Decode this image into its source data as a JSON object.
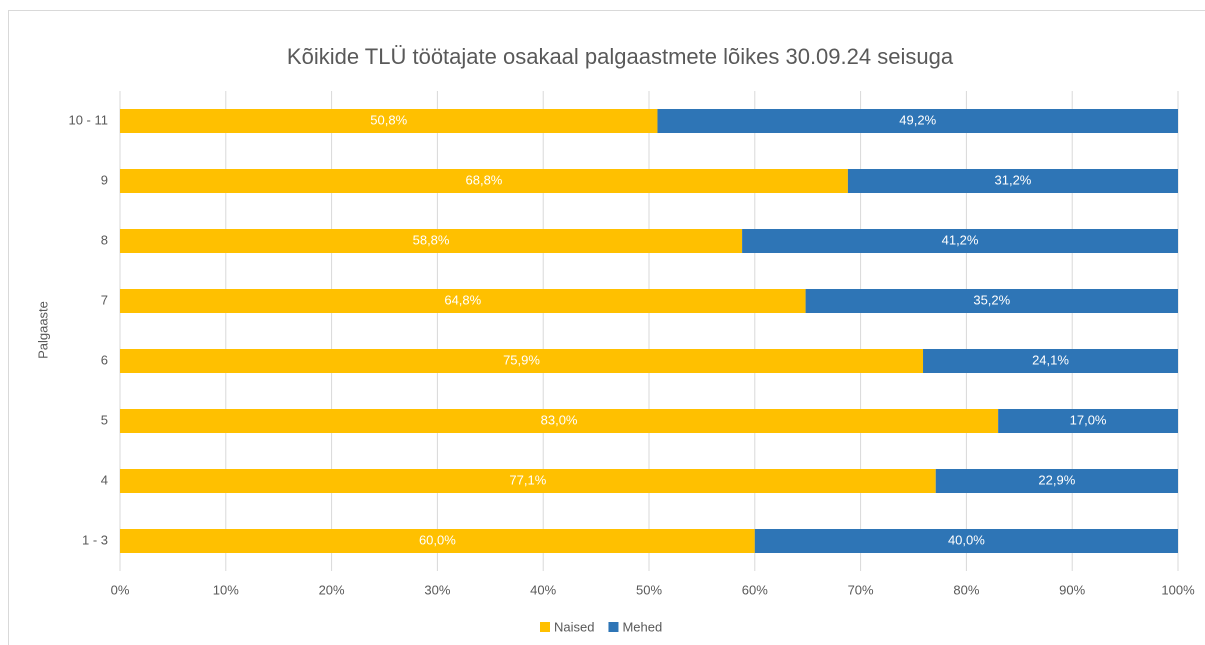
{
  "chart_data": {
    "type": "stacked_bar_horizontal",
    "title": "Kõikide TLÜ töötajate osakaal palgaastmete lõikes 30.09.24 seisuga",
    "y_label": "Palgaaste",
    "categories": [
      "10 - 11",
      "9",
      "8",
      "7",
      "6",
      "5",
      "4",
      "1 - 3"
    ],
    "series": [
      {
        "name": "Naised",
        "color": "#FFC000",
        "values": [
          50.8,
          68.8,
          58.8,
          64.8,
          75.9,
          83.0,
          77.1,
          60.0
        ],
        "value_labels": [
          "50,8%",
          "68,8%",
          "58,8%",
          "64,8%",
          "75,9%",
          "83,0%",
          "77,1%",
          "60,0%"
        ]
      },
      {
        "name": "Mehed",
        "color": "#2E75B6",
        "values": [
          49.2,
          31.2,
          41.2,
          35.2,
          24.1,
          17.0,
          22.9,
          40.0
        ],
        "value_labels": [
          "49,2%",
          "31,2%",
          "41,2%",
          "35,2%",
          "24,1%",
          "17,0%",
          "22,9%",
          "40,0%"
        ]
      }
    ],
    "xlim": [
      0,
      100
    ],
    "xticks": [
      {
        "value": 0,
        "label": "0%"
      },
      {
        "value": 10,
        "label": "10%"
      },
      {
        "value": 20,
        "label": "20%"
      },
      {
        "value": 30,
        "label": "30%"
      },
      {
        "value": 40,
        "label": "40%"
      },
      {
        "value": 50,
        "label": "50%"
      },
      {
        "value": 60,
        "label": "60%"
      },
      {
        "value": 70,
        "label": "70%"
      },
      {
        "value": 80,
        "label": "80%"
      },
      {
        "value": 90,
        "label": "90%"
      },
      {
        "value": 100,
        "label": "100%"
      }
    ],
    "grid": true,
    "legend": "bottom"
  }
}
